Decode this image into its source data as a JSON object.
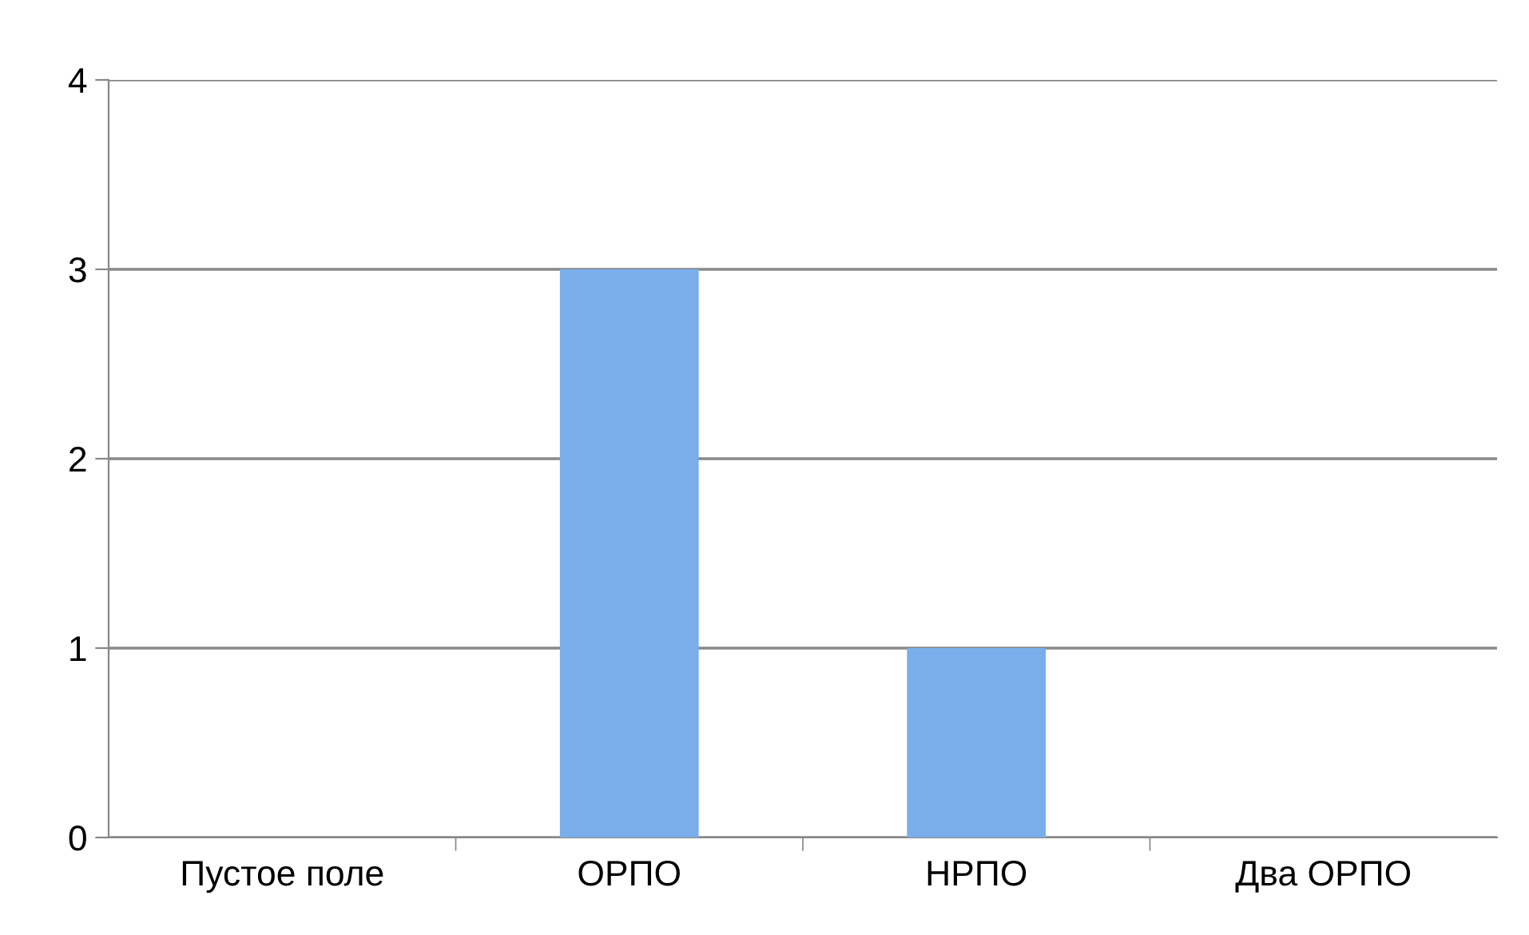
{
  "chart_data": {
    "type": "bar",
    "categories": [
      "Пустое поле",
      "ОРПО",
      "НРПО",
      "Два ОРПО"
    ],
    "values": [
      0,
      3,
      1,
      0
    ],
    "color": "#7aaeea",
    "ylim": [
      0,
      4
    ],
    "yticks": [
      0,
      1,
      2,
      3,
      4
    ],
    "grid": "y",
    "legend": false
  }
}
